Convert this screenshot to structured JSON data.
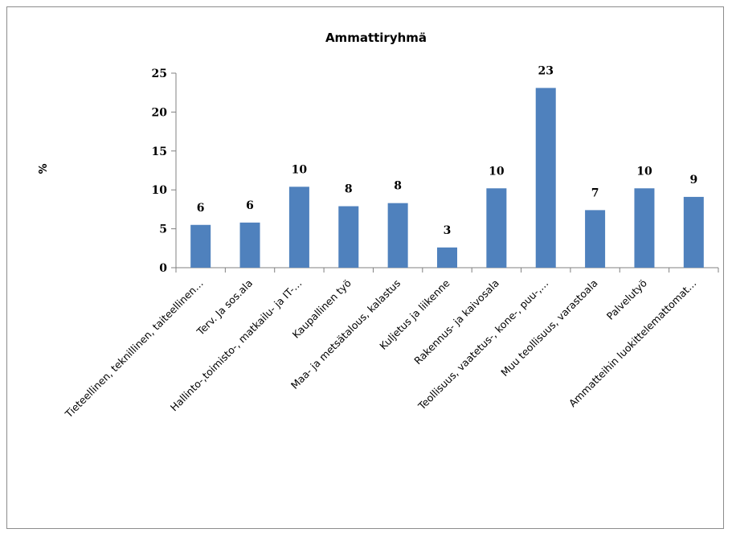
{
  "chart_data": {
    "type": "bar",
    "title": "Ammattiryhmä",
    "xlabel": "",
    "ylabel": "%",
    "ylim": [
      0,
      25
    ],
    "yticks": [
      0,
      5,
      10,
      15,
      20,
      25
    ],
    "categories": [
      "Tieteellinen, teknillinen, taiteellinen…",
      "Terv. Ja sos.ala",
      "Hallinto-,toimisto-, matkailu- ja IT-…",
      "Kaupallinen työ",
      "Maa- ja metsätalous, kalastus",
      "Kuljetus ja liikenne",
      "Rakennus- ja kaivosala",
      "Teollisuus, vaatetus-, kone-, puu-,…",
      "Muu teollisuus, varastoala",
      "Palvelutyö",
      "Ammatteihin luokittelemattomat…"
    ],
    "values": [
      5.5,
      5.8,
      10.4,
      7.9,
      8.3,
      2.6,
      10.2,
      23.1,
      7.4,
      10.2,
      9.1
    ],
    "data_labels": [
      "6",
      "6",
      "10",
      "8",
      "8",
      "3",
      "10",
      "23",
      "7",
      "10",
      "9"
    ],
    "bar_color": "#4f81bd",
    "grid": false,
    "legend": "none"
  }
}
